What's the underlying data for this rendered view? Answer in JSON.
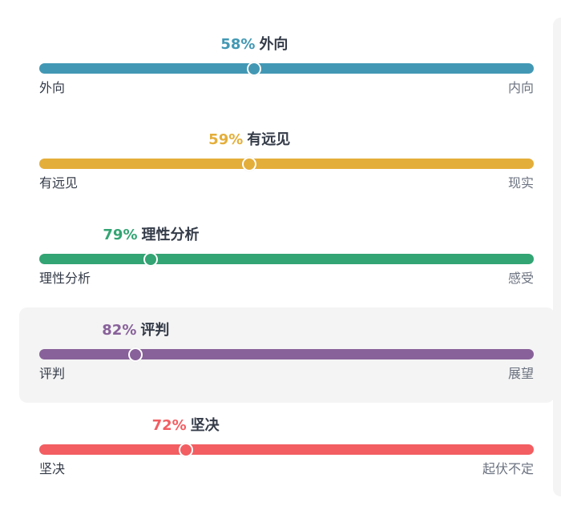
{
  "traits": [
    {
      "percent_label": "58%",
      "trait": "外向",
      "left_label": "外向",
      "right_label": "内向",
      "position": 0.435,
      "color": "#4298b4",
      "highlight": false
    },
    {
      "percent_label": "59%",
      "trait": "有远见",
      "left_label": "有远见",
      "right_label": "现实",
      "position": 0.425,
      "color": "#e4ae3a",
      "highlight": false
    },
    {
      "percent_label": "79%",
      "trait": "理性分析",
      "left_label": "理性分析",
      "right_label": "感受",
      "position": 0.226,
      "color": "#33a474",
      "highlight": false
    },
    {
      "percent_label": "82%",
      "trait": "评判",
      "left_label": "评判",
      "right_label": "展望",
      "position": 0.195,
      "color": "#88619a",
      "highlight": true
    },
    {
      "percent_label": "72%",
      "trait": "坚决",
      "left_label": "坚决",
      "right_label": "起伏不定",
      "position": 0.296,
      "color": "#f25e62",
      "highlight": false
    }
  ]
}
